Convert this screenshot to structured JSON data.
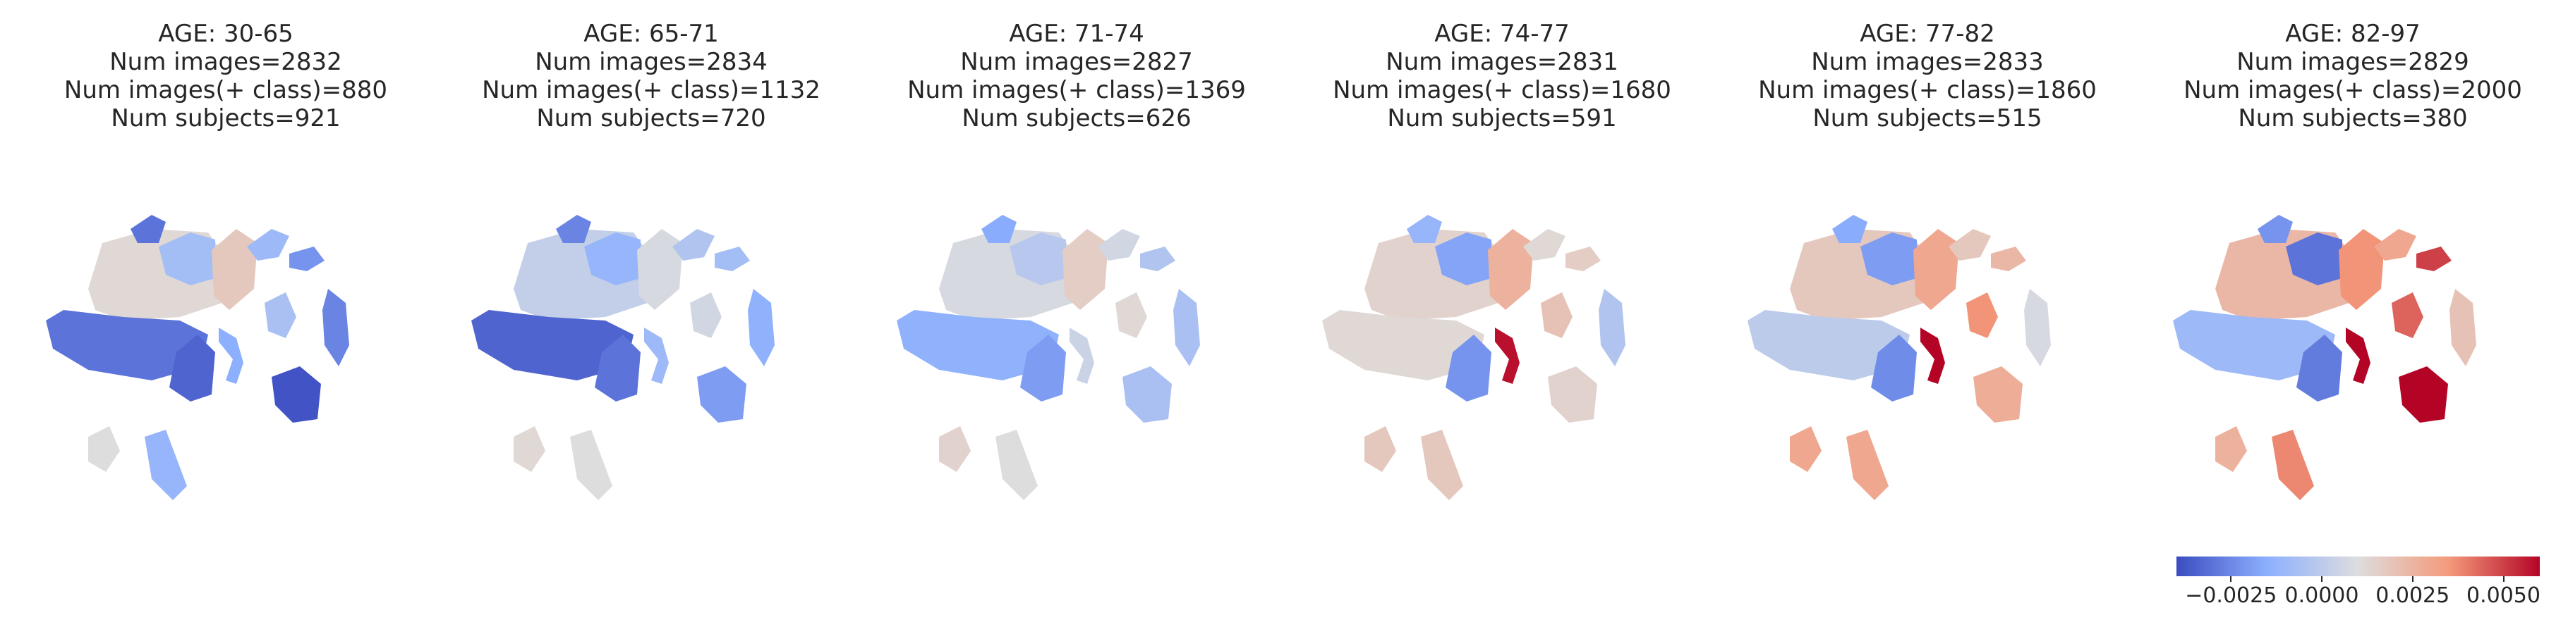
{
  "chart_data": {
    "type": "heatmap",
    "colormap": "coolwarm",
    "colorbar": {
      "ticks": [
        -0.0025,
        0.0,
        0.0025,
        0.005
      ],
      "tick_labels": [
        "−0.0025",
        "0.0000",
        "0.0025",
        "0.0050"
      ],
      "range": [
        -0.004,
        0.006
      ]
    },
    "panels": [
      {
        "title": "AGE: 30-65",
        "num_images": "Num images=2832",
        "num_class": "Num images(+ class)=880",
        "num_subjects": "Num subjects=921",
        "region_values": [
          0.0012,
          -0.003,
          -0.0008,
          -0.0034,
          0.0018,
          -0.0015,
          -0.001,
          -0.0022,
          -0.003,
          -0.0012,
          -0.0038,
          -0.0006,
          0.001,
          -0.0026
        ]
      },
      {
        "title": "AGE: 65-71",
        "num_images": "Num images=2834",
        "num_class": "Num images(+ class)=1132",
        "num_subjects": "Num subjects=720",
        "region_values": [
          0.0002,
          -0.0034,
          -0.0012,
          -0.003,
          0.0008,
          -0.001,
          -0.0004,
          -0.0008,
          -0.0026,
          0.001,
          -0.002,
          0.0006,
          0.0012,
          -0.0014
        ]
      },
      {
        "title": "AGE: 71-74",
        "num_images": "Num images=2827",
        "num_class": "Num images(+ class)=1369",
        "num_subjects": "Num subjects=626",
        "region_values": [
          0.0008,
          -0.0014,
          -0.0002,
          -0.002,
          0.0016,
          0.0004,
          0.0006,
          -0.0004,
          -0.0016,
          0.001,
          -0.0006,
          0.0012,
          0.0014,
          -0.0006
        ]
      },
      {
        "title": "AGE: 74-77",
        "num_images": "Num images=2831",
        "num_class": "Num images(+ class)=1680",
        "num_subjects": "Num subjects=591",
        "region_values": [
          0.0014,
          0.0012,
          -0.0018,
          -0.0022,
          0.0026,
          0.0058,
          0.0012,
          0.0016,
          -0.0012,
          0.0018,
          0.0014,
          0.002,
          0.0018,
          -0.0004
        ]
      },
      {
        "title": "AGE: 77-82",
        "num_images": "Num images=2833",
        "num_class": "Num images(+ class)=1860",
        "num_subjects": "Num subjects=515",
        "region_values": [
          0.0018,
          0.0,
          -0.002,
          -0.0024,
          0.003,
          0.0062,
          0.0018,
          0.0024,
          -0.0016,
          0.003,
          0.0028,
          0.0036,
          0.003,
          0.0008
        ]
      },
      {
        "title": "AGE: 82-97",
        "num_images": "Num images=2829",
        "num_class": "Num images(+ class)=2000",
        "num_subjects": "Num subjects=380",
        "region_values": [
          0.0024,
          -0.001,
          -0.003,
          -0.0028,
          0.0036,
          0.0064,
          0.003,
          0.005,
          -0.0022,
          0.0038,
          0.006,
          0.0044,
          0.0026,
          0.002
        ]
      }
    ]
  }
}
